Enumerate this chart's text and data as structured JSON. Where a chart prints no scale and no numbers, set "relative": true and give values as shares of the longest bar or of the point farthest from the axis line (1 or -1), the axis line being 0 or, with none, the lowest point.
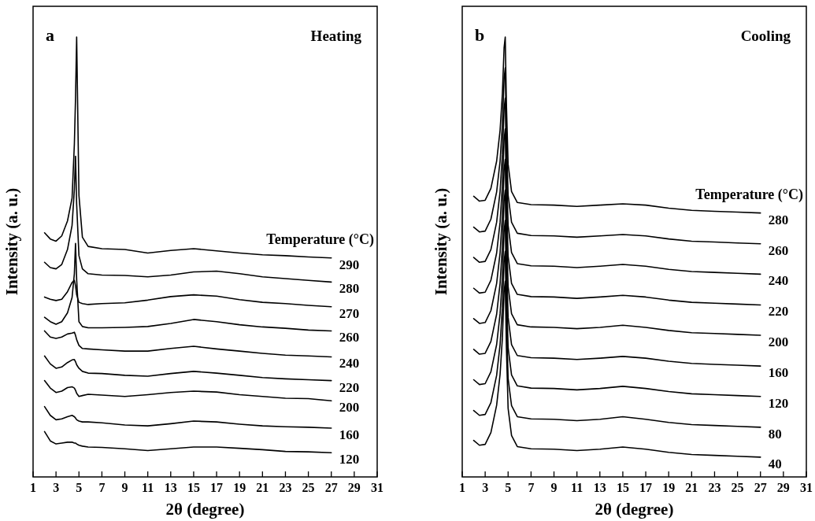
{
  "chart_data": [
    {
      "type": "line",
      "title": "Heating",
      "annotations": [
        "a"
      ],
      "xlabel": "2θ (degree)",
      "ylabel": "Intensity (a. u.)",
      "legend_title": "Temperature (°C)",
      "relative": true,
      "xlim": [
        1,
        31
      ],
      "xticks": [
        1,
        3,
        5,
        7,
        9,
        11,
        13,
        15,
        17,
        19,
        21,
        23,
        25,
        27,
        29,
        31
      ],
      "tick_labels": "x",
      "x": [
        2,
        2.5,
        3,
        3.5,
        4,
        4.4,
        4.6,
        4.7,
        4.8,
        5.0,
        5.3,
        5.8,
        7,
        9,
        11,
        13,
        15,
        17,
        19,
        21,
        23,
        25,
        27
      ],
      "series": [
        {
          "name": "290",
          "color": "#000000",
          "values": [
            0.555,
            0.541,
            0.536,
            0.548,
            0.582,
            0.634,
            0.757,
            0.86,
            1,
            0.64,
            0.545,
            0.524,
            0.519,
            0.517,
            0.509,
            0.515,
            0.519,
            0.514,
            0.509,
            0.505,
            0.503,
            0.5,
            0.498
          ]
        },
        {
          "name": "280",
          "color": "#000000",
          "values": [
            0.488,
            0.476,
            0.473,
            0.483,
            0.517,
            0.572,
            0.654,
            0.729,
            0.62,
            0.503,
            0.473,
            0.462,
            0.459,
            0.458,
            0.455,
            0.459,
            0.466,
            0.468,
            0.462,
            0.455,
            0.451,
            0.447,
            0.443
          ]
        },
        {
          "name": "270",
          "color": "#000000",
          "values": [
            0.409,
            0.404,
            0.401,
            0.404,
            0.421,
            0.442,
            0.447,
            0.435,
            0.414,
            0.397,
            0.394,
            0.392,
            0.394,
            0.396,
            0.402,
            0.41,
            0.414,
            0.411,
            0.403,
            0.397,
            0.394,
            0.39,
            0.387
          ]
        },
        {
          "name": "260",
          "color": "#000000",
          "values": [
            0.363,
            0.353,
            0.347,
            0.353,
            0.373,
            0.408,
            0.462,
            0.531,
            0.449,
            0.353,
            0.342,
            0.339,
            0.339,
            0.34,
            0.342,
            0.349,
            0.358,
            0.353,
            0.346,
            0.341,
            0.338,
            0.334,
            0.332
          ]
        },
        {
          "name": "240",
          "color": "#000000",
          "values": [
            0.332,
            0.318,
            0.315,
            0.318,
            0.325,
            0.327,
            0.329,
            0.322,
            0.312,
            0.299,
            0.292,
            0.291,
            0.289,
            0.286,
            0.286,
            0.292,
            0.297,
            0.291,
            0.286,
            0.281,
            0.277,
            0.275,
            0.273
          ]
        },
        {
          "name": "220",
          "color": "#000000",
          "values": [
            0.275,
            0.257,
            0.247,
            0.25,
            0.26,
            0.266,
            0.267,
            0.262,
            0.255,
            0.247,
            0.24,
            0.236,
            0.235,
            0.231,
            0.229,
            0.235,
            0.24,
            0.236,
            0.231,
            0.226,
            0.223,
            0.221,
            0.219
          ]
        },
        {
          "name": "200",
          "color": "#000000",
          "values": [
            0.219,
            0.202,
            0.192,
            0.195,
            0.203,
            0.205,
            0.202,
            0.197,
            0.19,
            0.183,
            0.185,
            0.188,
            0.186,
            0.183,
            0.187,
            0.192,
            0.195,
            0.193,
            0.187,
            0.183,
            0.179,
            0.178,
            0.173
          ]
        },
        {
          "name": "160",
          "color": "#000000",
          "values": [
            0.16,
            0.14,
            0.13,
            0.132,
            0.137,
            0.14,
            0.137,
            0.134,
            0.13,
            0.127,
            0.125,
            0.125,
            0.123,
            0.118,
            0.116,
            0.121,
            0.127,
            0.125,
            0.12,
            0.116,
            0.114,
            0.113,
            0.111
          ]
        },
        {
          "name": "120",
          "color": "#000000",
          "values": [
            0.103,
            0.082,
            0.075,
            0.077,
            0.079,
            0.079,
            0.077,
            0.077,
            0.075,
            0.072,
            0.07,
            0.068,
            0.067,
            0.064,
            0.06,
            0.064,
            0.068,
            0.068,
            0.065,
            0.062,
            0.058,
            0.057,
            0.055
          ]
        }
      ]
    },
    {
      "type": "line",
      "title": "Cooling",
      "annotations": [
        "b"
      ],
      "xlabel": "2θ (degree)",
      "ylabel": "Intensity (a. u.)",
      "legend_title": "Temperature (°C)",
      "relative": true,
      "xlim": [
        1,
        31
      ],
      "xticks": [
        1,
        3,
        5,
        7,
        9,
        11,
        13,
        15,
        17,
        19,
        21,
        23,
        25,
        27,
        29,
        31
      ],
      "tick_labels": "x",
      "x": [
        2,
        2.5,
        3,
        3.5,
        4,
        4.3,
        4.5,
        4.65,
        4.75,
        4.85,
        5.0,
        5.3,
        5.8,
        7,
        9,
        11,
        13,
        15,
        17,
        19,
        21,
        23,
        25,
        27
      ],
      "series": [
        {
          "name": "280",
          "color": "#000000",
          "values": [
            0.638,
            0.627,
            0.629,
            0.656,
            0.718,
            0.788,
            0.871,
            0.976,
            1,
            0.85,
            0.711,
            0.649,
            0.624,
            0.619,
            0.618,
            0.615,
            0.618,
            0.621,
            0.618,
            0.611,
            0.606,
            0.604,
            0.602,
            0.6
          ]
        },
        {
          "name": "260",
          "color": "#000000",
          "values": [
            0.568,
            0.557,
            0.559,
            0.586,
            0.648,
            0.718,
            0.801,
            0.906,
            0.93,
            0.78,
            0.641,
            0.579,
            0.554,
            0.549,
            0.548,
            0.545,
            0.548,
            0.551,
            0.548,
            0.541,
            0.536,
            0.534,
            0.532,
            0.53
          ]
        },
        {
          "name": "240",
          "color": "#000000",
          "values": [
            0.499,
            0.488,
            0.49,
            0.517,
            0.579,
            0.649,
            0.732,
            0.837,
            0.861,
            0.711,
            0.572,
            0.51,
            0.485,
            0.48,
            0.479,
            0.476,
            0.479,
            0.483,
            0.479,
            0.472,
            0.467,
            0.465,
            0.463,
            0.461
          ]
        },
        {
          "name": "220",
          "color": "#000000",
          "values": [
            0.429,
            0.418,
            0.42,
            0.447,
            0.509,
            0.579,
            0.662,
            0.767,
            0.791,
            0.641,
            0.502,
            0.44,
            0.415,
            0.41,
            0.409,
            0.406,
            0.409,
            0.413,
            0.409,
            0.402,
            0.397,
            0.395,
            0.393,
            0.391
          ]
        },
        {
          "name": "200",
          "color": "#000000",
          "values": [
            0.36,
            0.349,
            0.351,
            0.378,
            0.44,
            0.51,
            0.593,
            0.698,
            0.722,
            0.572,
            0.433,
            0.371,
            0.346,
            0.341,
            0.34,
            0.337,
            0.34,
            0.345,
            0.34,
            0.333,
            0.328,
            0.326,
            0.324,
            0.322
          ]
        },
        {
          "name": "160",
          "color": "#000000",
          "values": [
            0.29,
            0.279,
            0.281,
            0.308,
            0.37,
            0.44,
            0.523,
            0.628,
            0.652,
            0.502,
            0.363,
            0.301,
            0.276,
            0.271,
            0.27,
            0.267,
            0.27,
            0.274,
            0.27,
            0.263,
            0.258,
            0.256,
            0.254,
            0.252
          ]
        },
        {
          "name": "120",
          "color": "#000000",
          "values": [
            0.221,
            0.21,
            0.212,
            0.239,
            0.301,
            0.371,
            0.454,
            0.559,
            0.583,
            0.433,
            0.294,
            0.232,
            0.207,
            0.202,
            0.201,
            0.198,
            0.201,
            0.206,
            0.201,
            0.194,
            0.189,
            0.187,
            0.185,
            0.183
          ]
        },
        {
          "name": "80",
          "color": "#000000",
          "values": [
            0.151,
            0.14,
            0.142,
            0.169,
            0.231,
            0.301,
            0.384,
            0.489,
            0.513,
            0.363,
            0.224,
            0.162,
            0.137,
            0.132,
            0.131,
            0.128,
            0.131,
            0.137,
            0.131,
            0.124,
            0.119,
            0.117,
            0.115,
            0.113
          ]
        },
        {
          "name": "40",
          "color": "#000000",
          "values": [
            0.083,
            0.072,
            0.074,
            0.101,
            0.163,
            0.233,
            0.316,
            0.421,
            0.445,
            0.295,
            0.156,
            0.094,
            0.069,
            0.064,
            0.063,
            0.06,
            0.063,
            0.068,
            0.063,
            0.056,
            0.051,
            0.049,
            0.047,
            0.045
          ]
        }
      ]
    }
  ]
}
